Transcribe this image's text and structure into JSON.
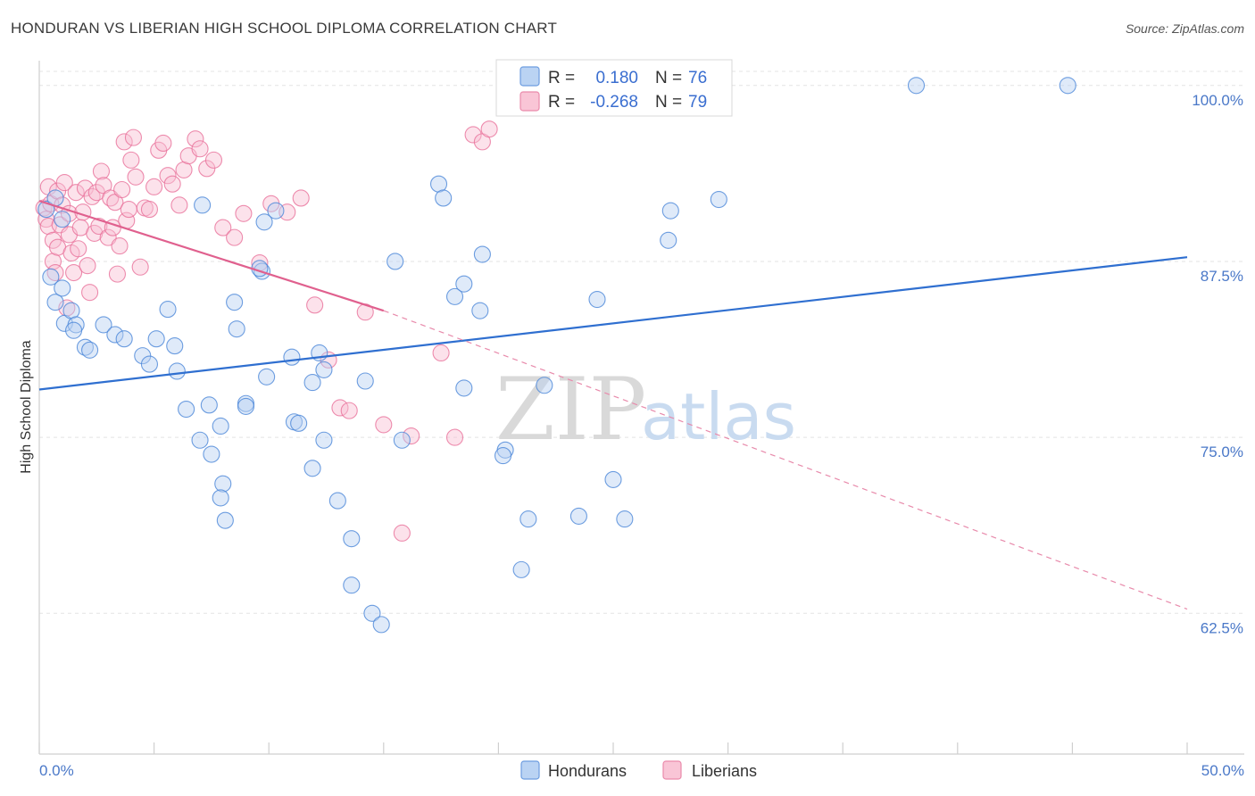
{
  "header": {
    "title": "HONDURAN VS LIBERIAN HIGH SCHOOL DIPLOMA CORRELATION CHART",
    "source": "Source: ZipAtlas.com"
  },
  "watermark": {
    "zip": "ZIP",
    "atlas": "atlas"
  },
  "legend": {
    "r_label": "R =",
    "n_label": "N =",
    "hondurans": {
      "r": "0.180",
      "n": "76"
    },
    "liberians": {
      "r": "-0.268",
      "n": "79"
    }
  },
  "chart_data": {
    "type": "scatter",
    "title": "HONDURAN VS LIBERIAN HIGH SCHOOL DIPLOMA CORRELATION CHART",
    "xlabel": "",
    "ylabel": "High School Diploma",
    "xlim": [
      0,
      50
    ],
    "ylim": [
      52.5,
      101
    ],
    "x_tick_labels": [
      {
        "value": 0,
        "label": "0.0%"
      },
      {
        "value": 50,
        "label": "50.0%"
      }
    ],
    "y_tick_labels": [
      {
        "value": 100,
        "label": "100.0%"
      },
      {
        "value": 87.5,
        "label": "87.5%"
      },
      {
        "value": 75,
        "label": "75.0%"
      },
      {
        "value": 62.5,
        "label": "62.5%"
      }
    ],
    "colors": {
      "hondurans": "#4a86d8",
      "liberians": "#e8709a"
    },
    "series": [
      {
        "name": "Hondurans",
        "trend": {
          "x": [
            0,
            50
          ],
          "y": [
            78.4,
            87.8
          ],
          "style": "solid"
        },
        "points": [
          [
            0.3,
            91.2
          ],
          [
            0.5,
            86.4
          ],
          [
            0.7,
            84.6
          ],
          [
            1.0,
            85.6
          ],
          [
            1.1,
            83.1
          ],
          [
            1.4,
            84.0
          ],
          [
            1.6,
            83.0
          ],
          [
            2.0,
            81.4
          ],
          [
            1.5,
            82.6
          ],
          [
            2.2,
            81.2
          ],
          [
            2.8,
            83.0
          ],
          [
            3.3,
            82.3
          ],
          [
            3.7,
            82.0
          ],
          [
            4.5,
            80.8
          ],
          [
            4.8,
            80.2
          ],
          [
            5.1,
            82.0
          ],
          [
            6.0,
            79.7
          ],
          [
            5.6,
            84.1
          ],
          [
            5.9,
            81.5
          ],
          [
            6.4,
            77.0
          ],
          [
            7.0,
            74.8
          ],
          [
            7.4,
            77.3
          ],
          [
            7.9,
            75.8
          ],
          [
            8.0,
            71.7
          ],
          [
            7.5,
            73.8
          ],
          [
            7.9,
            70.7
          ],
          [
            8.1,
            69.1
          ],
          [
            8.5,
            84.6
          ],
          [
            8.6,
            82.7
          ],
          [
            9.0,
            77.4
          ],
          [
            9.0,
            77.2
          ],
          [
            7.1,
            91.5
          ],
          [
            9.7,
            86.8
          ],
          [
            9.6,
            87.0
          ],
          [
            9.9,
            79.3
          ],
          [
            10.3,
            91.1
          ],
          [
            9.8,
            90.3
          ],
          [
            11.0,
            80.7
          ],
          [
            11.1,
            76.1
          ],
          [
            11.3,
            76.0
          ],
          [
            11.9,
            78.9
          ],
          [
            12.2,
            81.0
          ],
          [
            12.4,
            79.8
          ],
          [
            12.4,
            74.8
          ],
          [
            11.9,
            72.8
          ],
          [
            13.0,
            70.5
          ],
          [
            13.6,
            67.8
          ],
          [
            14.2,
            79.0
          ],
          [
            13.6,
            64.5
          ],
          [
            14.5,
            62.5
          ],
          [
            14.9,
            61.7
          ],
          [
            15.5,
            87.5
          ],
          [
            15.8,
            74.8
          ],
          [
            17.4,
            93.0
          ],
          [
            17.6,
            92.0
          ],
          [
            18.1,
            85.0
          ],
          [
            18.5,
            78.5
          ],
          [
            19.3,
            88.0
          ],
          [
            18.5,
            85.9
          ],
          [
            19.2,
            84.0
          ],
          [
            20.3,
            74.1
          ],
          [
            20.2,
            73.7
          ],
          [
            21.3,
            69.2
          ],
          [
            21.0,
            65.6
          ],
          [
            22.0,
            78.7
          ],
          [
            23.5,
            69.4
          ],
          [
            24.3,
            84.8
          ],
          [
            25.0,
            72.0
          ],
          [
            25.5,
            69.2
          ],
          [
            27.5,
            91.1
          ],
          [
            27.4,
            89.0
          ],
          [
            29.6,
            91.9
          ],
          [
            38.2,
            100.0
          ],
          [
            44.8,
            100.0
          ],
          [
            0.7,
            92.0
          ],
          [
            1.0,
            90.5
          ]
        ]
      },
      {
        "name": "Liberians",
        "trend": {
          "x": [
            0,
            15
          ],
          "y": [
            91.8,
            84.0
          ],
          "style": "solid",
          "extended": {
            "x": [
              15,
              50
            ],
            "y": [
              84.0,
              62.8
            ],
            "style": "dashed"
          }
        },
        "points": [
          [
            0.2,
            91.3
          ],
          [
            0.3,
            90.5
          ],
          [
            0.4,
            92.8
          ],
          [
            0.4,
            90.0
          ],
          [
            0.5,
            91.6
          ],
          [
            0.6,
            89.0
          ],
          [
            0.6,
            87.5
          ],
          [
            0.7,
            86.7
          ],
          [
            0.8,
            92.5
          ],
          [
            0.8,
            88.5
          ],
          [
            0.9,
            90.1
          ],
          [
            1.0,
            91.5
          ],
          [
            1.1,
            93.1
          ],
          [
            1.2,
            84.2
          ],
          [
            1.3,
            90.9
          ],
          [
            1.3,
            89.4
          ],
          [
            1.4,
            88.1
          ],
          [
            1.5,
            86.7
          ],
          [
            1.6,
            92.4
          ],
          [
            1.7,
            88.4
          ],
          [
            1.8,
            89.9
          ],
          [
            1.9,
            91.0
          ],
          [
            2.0,
            92.7
          ],
          [
            2.1,
            87.2
          ],
          [
            2.2,
            85.3
          ],
          [
            2.3,
            92.1
          ],
          [
            2.4,
            89.5
          ],
          [
            2.5,
            92.4
          ],
          [
            2.6,
            90.0
          ],
          [
            2.7,
            93.9
          ],
          [
            2.8,
            92.9
          ],
          [
            3.0,
            89.2
          ],
          [
            3.1,
            92.0
          ],
          [
            3.2,
            89.9
          ],
          [
            3.3,
            91.7
          ],
          [
            3.4,
            86.6
          ],
          [
            3.5,
            88.6
          ],
          [
            3.6,
            92.6
          ],
          [
            3.7,
            96.0
          ],
          [
            3.8,
            90.4
          ],
          [
            3.9,
            91.2
          ],
          [
            4.0,
            94.7
          ],
          [
            4.1,
            96.3
          ],
          [
            4.2,
            93.5
          ],
          [
            4.4,
            87.1
          ],
          [
            4.6,
            91.3
          ],
          [
            4.8,
            91.2
          ],
          [
            5.0,
            92.8
          ],
          [
            5.2,
            95.4
          ],
          [
            5.4,
            95.9
          ],
          [
            5.6,
            93.6
          ],
          [
            5.8,
            93.0
          ],
          [
            6.1,
            91.5
          ],
          [
            6.3,
            94.0
          ],
          [
            6.5,
            95.0
          ],
          [
            6.8,
            96.2
          ],
          [
            7.0,
            95.5
          ],
          [
            7.3,
            94.1
          ],
          [
            7.6,
            94.7
          ],
          [
            8.0,
            89.9
          ],
          [
            8.5,
            89.2
          ],
          [
            8.9,
            90.9
          ],
          [
            9.6,
            87.4
          ],
          [
            10.1,
            91.6
          ],
          [
            10.8,
            91.0
          ],
          [
            11.4,
            92.0
          ],
          [
            12.0,
            84.4
          ],
          [
            12.6,
            80.5
          ],
          [
            13.1,
            77.1
          ],
          [
            13.5,
            76.9
          ],
          [
            14.2,
            83.9
          ],
          [
            15.0,
            75.9
          ],
          [
            15.8,
            68.2
          ],
          [
            16.2,
            75.1
          ],
          [
            17.5,
            81.0
          ],
          [
            18.1,
            75.0
          ],
          [
            18.9,
            96.5
          ],
          [
            19.3,
            96.0
          ],
          [
            19.6,
            96.9
          ]
        ]
      }
    ]
  }
}
